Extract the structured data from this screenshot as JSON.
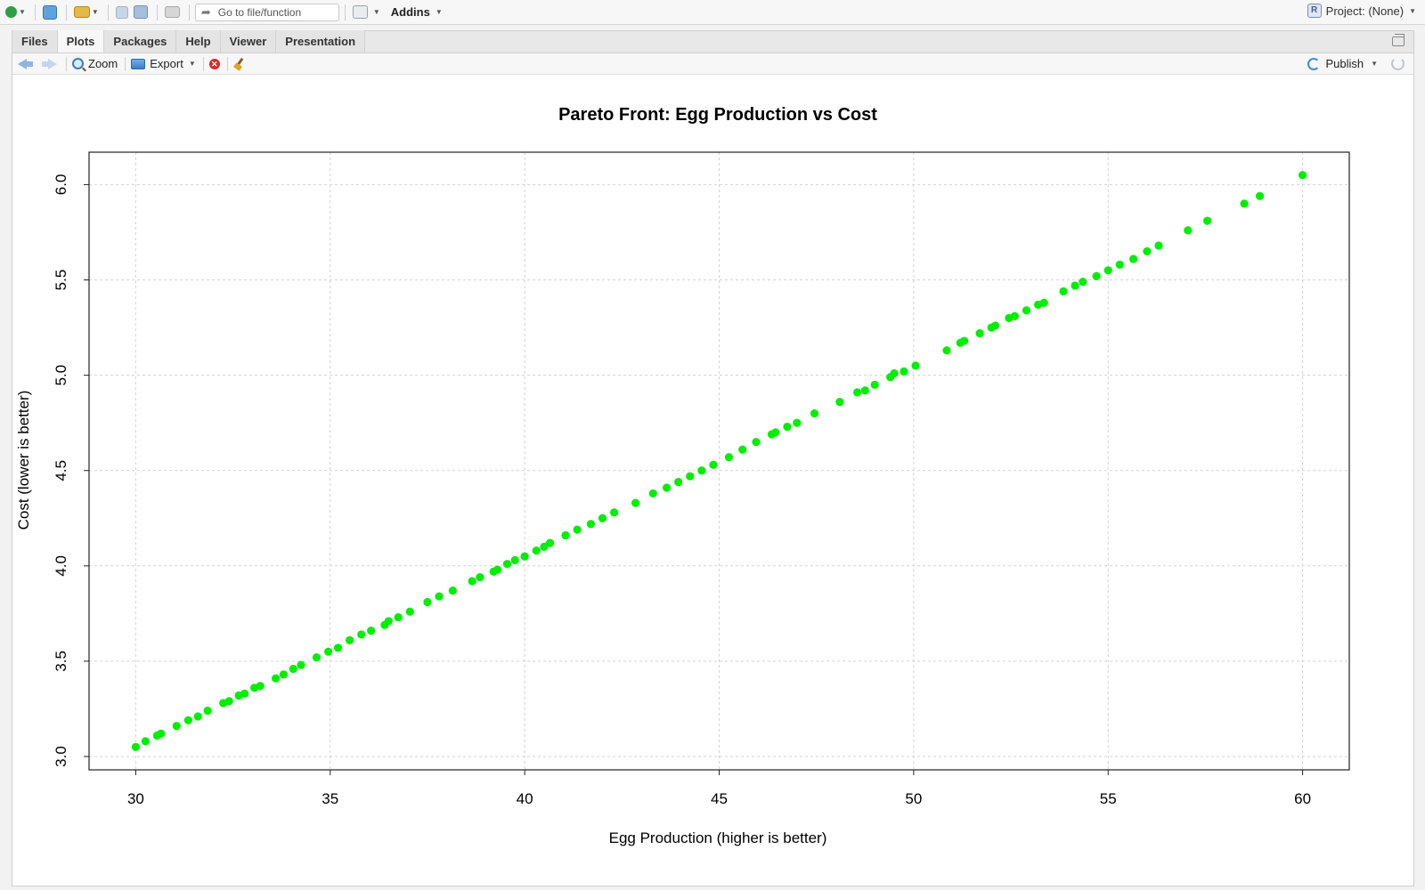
{
  "toolbar": {
    "goto_placeholder": "Go to file/function",
    "addins_label": "Addins",
    "project_label": "Project: (None)",
    "project_icon_letter": "R"
  },
  "pane": {
    "tabs": [
      {
        "label": "Files",
        "active": false
      },
      {
        "label": "Plots",
        "active": true
      },
      {
        "label": "Packages",
        "active": false
      },
      {
        "label": "Help",
        "active": false
      },
      {
        "label": "Viewer",
        "active": false
      },
      {
        "label": "Presentation",
        "active": false
      }
    ],
    "plot_toolbar": {
      "zoom_label": "Zoom",
      "export_label": "Export",
      "publish_label": "Publish"
    }
  },
  "colors": {
    "point": "#00ee00",
    "grid": "#d3d3d3",
    "accent": "#3a8fd6"
  },
  "chart_data": {
    "type": "scatter",
    "title": "Pareto Front: Egg Production vs Cost",
    "xlabel": "Egg Production (higher is better)",
    "ylabel": "Cost (lower is better)",
    "xlim": [
      28.8,
      61.2
    ],
    "ylim": [
      2.93,
      6.17
    ],
    "xticks": [
      30,
      35,
      40,
      45,
      50,
      55,
      60
    ],
    "xtick_labels": [
      "30",
      "35",
      "40",
      "45",
      "50",
      "55",
      "60"
    ],
    "yticks": [
      3.0,
      3.5,
      4.0,
      4.5,
      5.0,
      5.5,
      6.0
    ],
    "ytick_labels": [
      "3.0",
      "3.5",
      "4.0",
      "4.5",
      "5.0",
      "5.5",
      "6.0"
    ],
    "grid": true,
    "legend": "none",
    "x": [
      30.0,
      30.25,
      30.55,
      30.65,
      31.05,
      31.35,
      31.6,
      31.85,
      32.25,
      32.4,
      32.65,
      32.8,
      33.05,
      33.2,
      33.6,
      33.8,
      34.05,
      34.25,
      34.65,
      34.95,
      35.2,
      35.5,
      35.8,
      36.05,
      36.4,
      36.5,
      36.75,
      37.05,
      37.5,
      37.8,
      38.15,
      38.65,
      38.85,
      39.2,
      39.3,
      39.55,
      39.75,
      40.0,
      40.3,
      40.5,
      40.65,
      41.05,
      41.35,
      41.7,
      42.0,
      42.3,
      42.85,
      43.3,
      43.65,
      43.95,
      44.25,
      44.55,
      44.85,
      45.25,
      45.6,
      45.95,
      46.35,
      46.45,
      46.75,
      47.0,
      47.45,
      48.1,
      48.55,
      48.75,
      49.0,
      49.4,
      49.5,
      49.75,
      50.05,
      50.85,
      51.2,
      51.3,
      51.7,
      52.0,
      52.1,
      52.45,
      52.6,
      52.9,
      53.2,
      53.35,
      53.85,
      54.15,
      54.35,
      54.7,
      55.0,
      55.3,
      55.65,
      56.0,
      56.3,
      57.05,
      57.55,
      58.5,
      58.9,
      60.0
    ],
    "y": [
      3.05,
      3.08,
      3.11,
      3.12,
      3.16,
      3.19,
      3.21,
      3.24,
      3.28,
      3.29,
      3.32,
      3.33,
      3.36,
      3.37,
      3.41,
      3.43,
      3.46,
      3.48,
      3.52,
      3.55,
      3.57,
      3.61,
      3.64,
      3.66,
      3.69,
      3.71,
      3.73,
      3.76,
      3.81,
      3.84,
      3.87,
      3.92,
      3.94,
      3.97,
      3.98,
      4.01,
      4.03,
      4.05,
      4.08,
      4.1,
      4.12,
      4.16,
      4.19,
      4.22,
      4.25,
      4.28,
      4.33,
      4.38,
      4.41,
      4.44,
      4.47,
      4.5,
      4.53,
      4.57,
      4.61,
      4.65,
      4.69,
      4.7,
      4.73,
      4.75,
      4.8,
      4.86,
      4.91,
      4.92,
      4.95,
      4.99,
      5.01,
      5.02,
      5.05,
      5.13,
      5.17,
      5.18,
      5.22,
      5.25,
      5.26,
      5.3,
      5.31,
      5.34,
      5.37,
      5.38,
      5.44,
      5.47,
      5.49,
      5.52,
      5.55,
      5.58,
      5.61,
      5.65,
      5.68,
      5.76,
      5.81,
      5.9,
      5.94,
      6.05
    ]
  }
}
